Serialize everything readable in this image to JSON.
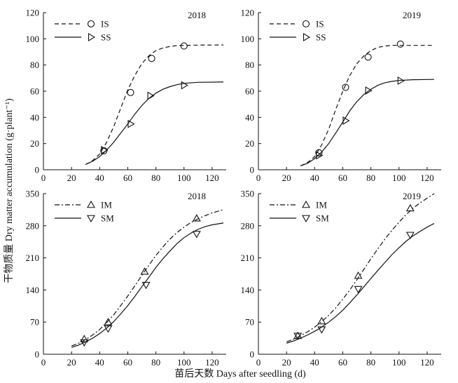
{
  "figure": {
    "ylabel": "干物质量 Dry matter accumulation (g·plant⁻¹)",
    "xlabel": "苗后天数 Days after seedling  (d)"
  },
  "chart_data": [
    {
      "type": "line",
      "title": "2018",
      "xlim": [
        0,
        130
      ],
      "ylim": [
        0,
        120
      ],
      "xticks": [
        0,
        20,
        40,
        60,
        80,
        100,
        120
      ],
      "yticks": [
        0,
        20,
        40,
        60,
        80,
        100,
        120
      ],
      "legend": "top-left",
      "series": [
        {
          "name": "IS",
          "marker": "circle",
          "line": "dashed",
          "points": {
            "x": [
              43,
              62,
              77,
              100
            ],
            "y": [
              14.5,
              59,
              85,
              94.5
            ]
          },
          "curve": {
            "x": [
              30,
              35,
              40,
              45,
              50,
              55,
              60,
              65,
              70,
              75,
              80,
              85,
              90,
              95,
              100,
              110,
              128
            ],
            "y": [
              4,
              7,
              12,
              21,
              33,
              47,
              61,
              72,
              81,
              87,
              91,
              93,
              94.2,
              94.8,
              95,
              95.2,
              95.3
            ]
          }
        },
        {
          "name": "SS",
          "marker": "triangle-right",
          "line": "solid",
          "points": {
            "x": [
              43,
              62,
              76,
              100
            ],
            "y": [
              15,
              35,
              56.5,
              64.5
            ]
          },
          "curve": {
            "x": [
              30,
              35,
              40,
              45,
              50,
              55,
              60,
              65,
              70,
              75,
              80,
              85,
              90,
              95,
              100,
              110,
              128
            ],
            "y": [
              4,
              6.5,
              10,
              15,
              21,
              28,
              35,
              42.5,
              49,
              54.5,
              58.5,
              61.5,
              63.5,
              65,
              66,
              66.8,
              67
            ]
          }
        }
      ]
    },
    {
      "type": "line",
      "title": "2019",
      "xlim": [
        0,
        130
      ],
      "ylim": [
        0,
        120
      ],
      "xticks": [
        0,
        20,
        40,
        60,
        80,
        100,
        120
      ],
      "yticks": [
        0,
        20,
        40,
        60,
        80,
        100,
        120
      ],
      "legend": "top-left",
      "series": [
        {
          "name": "IS",
          "marker": "circle",
          "line": "dashed",
          "points": {
            "x": [
              43,
              62,
              78,
              101
            ],
            "y": [
              13,
              63,
              86,
              96
            ]
          },
          "curve": {
            "x": [
              30,
              35,
              40,
              45,
              50,
              55,
              60,
              65,
              70,
              75,
              80,
              85,
              90,
              95,
              100,
              110,
              125
            ],
            "y": [
              3,
              5.5,
              10,
              19,
              31,
              46,
              60,
              72,
              81,
              87,
              91,
              93.5,
              94.5,
              95,
              95,
              95,
              95
            ]
          }
        },
        {
          "name": "SS",
          "marker": "triangle-right",
          "line": "solid",
          "points": {
            "x": [
              43,
              62,
              78,
              101
            ],
            "y": [
              11,
              37.5,
              60.5,
              68
            ]
          },
          "curve": {
            "x": [
              30,
              35,
              40,
              45,
              50,
              55,
              60,
              65,
              70,
              75,
              80,
              85,
              90,
              95,
              100,
              110,
              125
            ],
            "y": [
              3,
              5,
              8.5,
              13.5,
              20,
              28,
              36.5,
              45,
              52,
              57.5,
              61.5,
              64.5,
              66.5,
              67.5,
              68.2,
              68.8,
              69
            ]
          }
        }
      ]
    },
    {
      "type": "line",
      "title": "2018",
      "xlim": [
        0,
        130
      ],
      "ylim": [
        0,
        350
      ],
      "xticks": [
        0,
        20,
        40,
        60,
        80,
        100,
        120
      ],
      "yticks": [
        0,
        70,
        140,
        210,
        280,
        350
      ],
      "legend": "top-left",
      "series": [
        {
          "name": "IM",
          "marker": "triangle-up",
          "line": "dashdot",
          "points": {
            "x": [
              29,
              46,
              72,
              109
            ],
            "y": [
              33,
              70,
              180,
              296
            ]
          },
          "curve": {
            "x": [
              20,
              25,
              30,
              35,
              40,
              45,
              50,
              55,
              60,
              65,
              70,
              75,
              80,
              85,
              90,
              95,
              100,
              105,
              110,
              115,
              120,
              128
            ],
            "y": [
              18,
              24,
              32,
              42,
              54,
              69,
              86,
              106,
              127,
              149,
              172,
              194,
              215,
              234,
              251,
              265,
              277,
              287,
              295,
              302,
              308,
              315
            ]
          }
        },
        {
          "name": "SM",
          "marker": "triangle-down",
          "line": "solid",
          "points": {
            "x": [
              29,
              46,
              73,
              109
            ],
            "y": [
              26,
              56,
              151,
              262
            ]
          },
          "curve": {
            "x": [
              20,
              25,
              30,
              35,
              40,
              45,
              50,
              55,
              60,
              65,
              70,
              75,
              80,
              85,
              90,
              95,
              100,
              105,
              110,
              115,
              120,
              128
            ],
            "y": [
              15,
              20,
              27,
              35,
              45,
              57,
              71,
              88,
              106,
              126,
              147,
              168,
              189,
              208,
              225,
              241,
              254,
              264,
              272,
              278,
              282,
              286
            ]
          }
        }
      ]
    },
    {
      "type": "line",
      "title": "2019",
      "xlim": [
        0,
        130
      ],
      "ylim": [
        0,
        350
      ],
      "xticks": [
        0,
        20,
        40,
        60,
        80,
        100,
        120
      ],
      "yticks": [
        0,
        70,
        140,
        210,
        280,
        350
      ],
      "legend": "top-left",
      "series": [
        {
          "name": "IM",
          "marker": "triangle-up",
          "line": "dashdot",
          "points": {
            "x": [
              28,
              45,
              71,
              108
            ],
            "y": [
              40,
              72,
              171,
              318
            ]
          },
          "curve": {
            "x": [
              20,
              25,
              30,
              35,
              40,
              45,
              50,
              55,
              60,
              65,
              70,
              75,
              80,
              85,
              90,
              95,
              100,
              105,
              110,
              115,
              120,
              125
            ],
            "y": [
              27,
              33,
              40,
              49,
              59,
              71,
              85,
              101,
              120,
              140,
              162,
              185,
              208,
              230,
              251,
              270,
              288,
              304,
              318,
              330,
              340,
              350
            ]
          }
        },
        {
          "name": "SM",
          "marker": "triangle-down",
          "line": "solid",
          "points": {
            "x": [
              28,
              45,
              71,
              108
            ],
            "y": [
              40,
              54,
              142,
              260
            ]
          },
          "curve": {
            "x": [
              20,
              25,
              30,
              35,
              40,
              45,
              50,
              55,
              60,
              65,
              70,
              75,
              80,
              85,
              90,
              95,
              100,
              105,
              110,
              115,
              120,
              125
            ],
            "y": [
              24,
              29,
              35,
              42,
              50,
              59,
              70,
              82,
              96,
              112,
              129,
              147,
              165,
              183,
              200,
              217,
              232,
              246,
              258,
              268,
              277,
              285
            ]
          }
        }
      ]
    }
  ]
}
